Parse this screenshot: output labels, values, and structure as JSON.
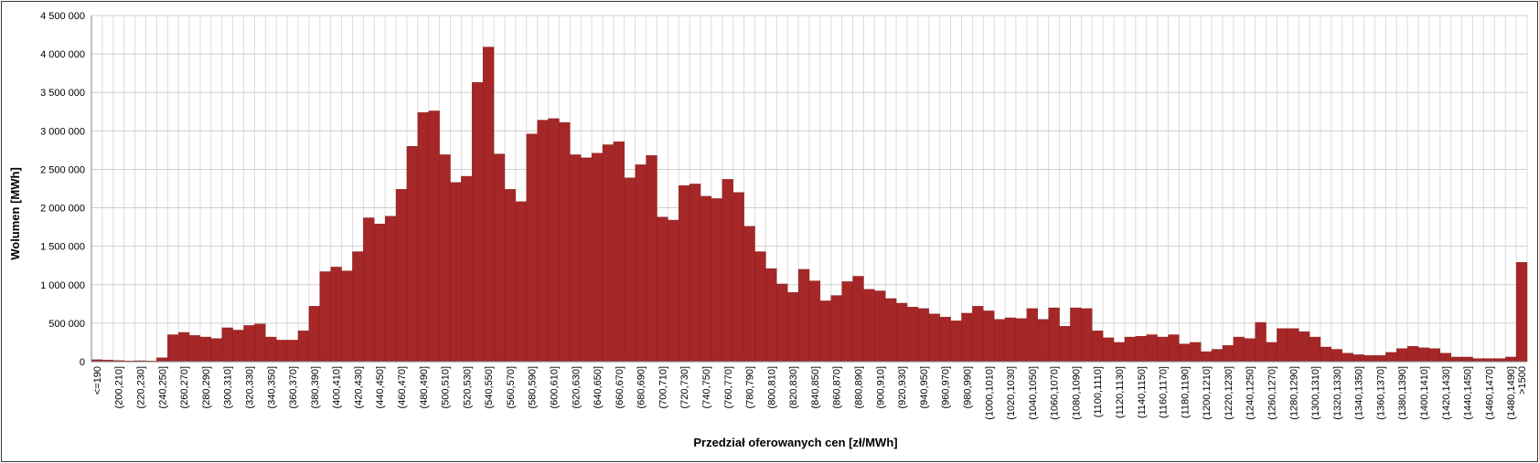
{
  "chart_data": {
    "type": "bar",
    "xlabel": "Przedział oferowanych cen [zł/MWh]",
    "ylabel": "Wolumen [MWh]",
    "ylim": [
      0,
      4500000
    ],
    "yticks": [
      0,
      500000,
      1000000,
      1500000,
      2000000,
      2500000,
      3000000,
      3500000,
      4000000,
      4500000
    ],
    "ytick_labels": [
      "0",
      "500 000",
      "1 000 000",
      "1 500 000",
      "2 000 000",
      "2 500 000",
      "3 000 000",
      "3 500 000",
      "4 000 000",
      "4 500 000"
    ],
    "grid": true,
    "bar_color": "#a52727",
    "xtick_labels": [
      "<=190",
      "(200,210]",
      "(220,230]",
      "(240,250]",
      "(260,270]",
      "(280,290]",
      "(300,310]",
      "(320,330]",
      "(340,350]",
      "(360,370]",
      "(380,390]",
      "(400,410]",
      "(420,430]",
      "(440,450]",
      "(460,470]",
      "(480,490]",
      "(500,510]",
      "(520,530]",
      "(540,550]",
      "(560,570]",
      "(580,590]",
      "(600,610]",
      "(620,630]",
      "(640,650]",
      "(660,670]",
      "(680,690]",
      "(700,710]",
      "(720,730]",
      "(740,750]",
      "(760,770]",
      "(780,790]",
      "(800,810]",
      "(820,830]",
      "(840,850]",
      "(860,870]",
      "(880,890]",
      "(900,910]",
      "(920,930]",
      "(940,950]",
      "(960,970]",
      "(980,990]",
      "(1000,1010]",
      "(1020,1030]",
      "(1040,1050]",
      "(1060,1070]",
      "(1080,1090]",
      "(1100,1110]",
      "(1120,1130]",
      "(1140,1150]",
      "(1160,1170]",
      "(1180,1190]",
      "(1200,1210]",
      "(1220,1230]",
      "(1240,1250]",
      "(1260,1270]",
      "(1280,1290]",
      "(1300,1310]",
      "(1320,1330]",
      "(1340,1350]",
      "(1360,1370]",
      "(1380,1390]",
      "(1400,1410]",
      "(1420,1430]",
      "(1440,1450]",
      "(1460,1470]",
      "(1480,1490]",
      ">1500"
    ],
    "values": [
      25000,
      20000,
      15000,
      10000,
      12000,
      8000,
      50000,
      350000,
      380000,
      340000,
      320000,
      300000,
      440000,
      410000,
      470000,
      490000,
      320000,
      280000,
      280000,
      400000,
      720000,
      1170000,
      1230000,
      1180000,
      1430000,
      1870000,
      1790000,
      1890000,
      2240000,
      2800000,
      3240000,
      3260000,
      2690000,
      2330000,
      2410000,
      3630000,
      4090000,
      2700000,
      2240000,
      2080000,
      2960000,
      3140000,
      3160000,
      3110000,
      2690000,
      2650000,
      2710000,
      2820000,
      2860000,
      2390000,
      2560000,
      2680000,
      1880000,
      1840000,
      2290000,
      2310000,
      2150000,
      2120000,
      2370000,
      2200000,
      1760000,
      1430000,
      1210000,
      1010000,
      900000,
      1200000,
      1050000,
      790000,
      860000,
      1040000,
      1110000,
      940000,
      920000,
      820000,
      760000,
      710000,
      690000,
      620000,
      580000,
      530000,
      630000,
      720000,
      660000,
      550000,
      570000,
      560000,
      690000,
      550000,
      700000,
      460000,
      700000,
      690000,
      400000,
      310000,
      250000,
      320000,
      330000,
      350000,
      320000,
      350000,
      230000,
      250000,
      130000,
      160000,
      210000,
      320000,
      300000,
      510000,
      250000,
      430000,
      430000,
      390000,
      320000,
      190000,
      160000,
      110000,
      90000,
      80000,
      80000,
      120000,
      170000,
      200000,
      180000,
      170000,
      110000,
      60000,
      60000,
      40000,
      40000,
      40000,
      60000,
      1290000
    ]
  }
}
